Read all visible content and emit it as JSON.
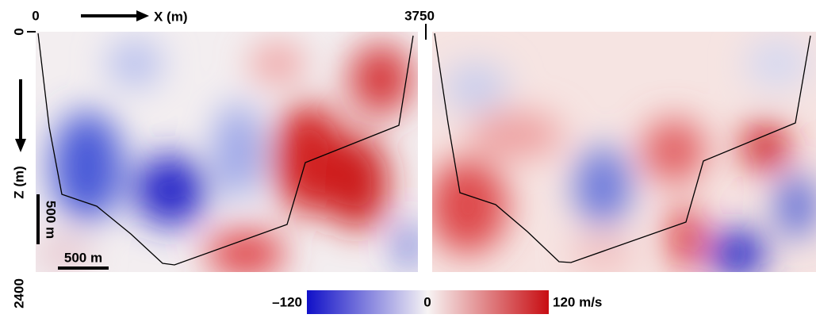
{
  "top_axis": {
    "start": "0",
    "end": "3750",
    "label": "X (m)"
  },
  "side_axis": {
    "start": "0",
    "end": "2400",
    "label": "Z (m)"
  },
  "scale_bars": {
    "vertical": "500 m",
    "horizontal": "500 m"
  },
  "colorbar": {
    "min": "–120",
    "mid": "0",
    "max": "120 m/s"
  }
}
